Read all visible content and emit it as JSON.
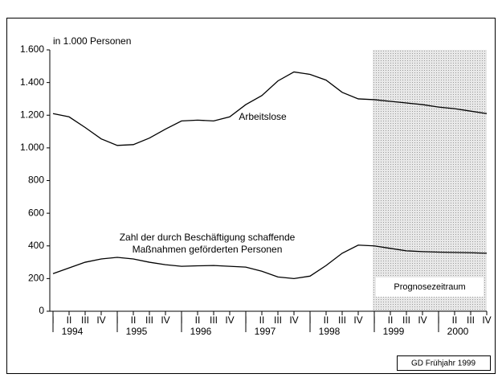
{
  "chart_data": {
    "type": "line",
    "y_label": "in 1.000 Personen",
    "categories": [
      "I",
      "II",
      "III",
      "IV",
      "I",
      "II",
      "III",
      "IV",
      "I",
      "II",
      "III",
      "IV",
      "I",
      "II",
      "III",
      "IV",
      "I",
      "II",
      "III",
      "IV",
      "I",
      "II",
      "III",
      "IV",
      "I",
      "II",
      "III",
      "IV"
    ],
    "years": [
      "1994",
      "1995",
      "1996",
      "1997",
      "1998",
      "1999",
      "2000"
    ],
    "series": [
      {
        "name": "Arbeitslose",
        "color": "#000000",
        "values": [
          1210,
          1190,
          1125,
          1055,
          1015,
          1020,
          1060,
          1115,
          1165,
          1170,
          1165,
          1190,
          1265,
          1320,
          1410,
          1465,
          1450,
          1415,
          1340,
          1300,
          1295,
          1285,
          1275,
          1265,
          1250,
          1240,
          1225,
          1210
        ]
      },
      {
        "name": "Zahl der durch Beschäftigung schaffende Maßnahmen geförderten Personen",
        "label_lines": [
          "Zahl der durch Beschäftigung schaffende",
          "Maßnahmen geförderten Personen"
        ],
        "color": "#000000",
        "values": [
          230,
          265,
          300,
          320,
          330,
          320,
          300,
          285,
          275,
          278,
          280,
          275,
          270,
          245,
          210,
          200,
          215,
          280,
          355,
          405,
          400,
          385,
          370,
          365,
          362,
          360,
          358,
          355
        ]
      }
    ],
    "shaded_from": 20,
    "shaded_label": "Prognosezeitraum",
    "ylim": [
      0,
      1600
    ],
    "yticks": [
      0,
      200,
      400,
      600,
      800,
      {
        "value": 1000,
        "label": "1.000"
      },
      {
        "value": 1200,
        "label": "1.200"
      },
      {
        "value": 1400,
        "label": "1.400"
      },
      {
        "value": 1600,
        "label": "1.600"
      }
    ],
    "source": "GD Frühjahr 1999"
  }
}
